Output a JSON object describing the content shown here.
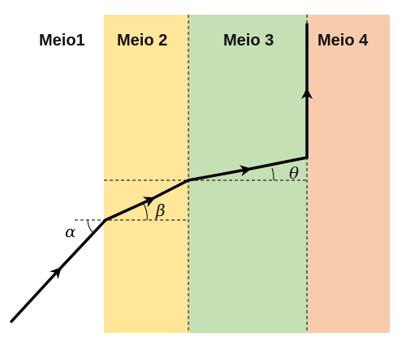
{
  "media": [
    {
      "label": "Meio1",
      "color": "#ffffff"
    },
    {
      "label": "Meio 2",
      "color": "#ffe699"
    },
    {
      "label": "Meio 3",
      "color": "#c5e0b4"
    },
    {
      "label": "Meio 4",
      "color": "#f8cbad"
    }
  ],
  "angles": {
    "alpha": "α",
    "beta": "β",
    "theta": "θ"
  },
  "colors": {
    "ray": "#000000",
    "dashed": "#000000"
  }
}
